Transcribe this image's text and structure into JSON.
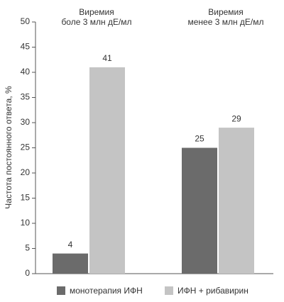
{
  "chart_data": {
    "type": "bar",
    "y_label": "Частота постоянного ответа, %",
    "categories": [
      "Виремия\nболе 3 млн дЕ/мл",
      "Виремия\nменее 3 млн дЕ/мл"
    ],
    "series": [
      {
        "name": "монотерапия ИФН",
        "color": "#6b6b6b",
        "values": [
          4,
          25
        ]
      },
      {
        "name": "ИФН + рибавирин",
        "color": "#c4c4c4",
        "values": [
          41,
          29
        ]
      }
    ],
    "ylim": [
      0,
      50
    ],
    "yticks": [
      0,
      5,
      10,
      15,
      20,
      25,
      30,
      35,
      40,
      45,
      50
    ],
    "legend": "bottom"
  }
}
